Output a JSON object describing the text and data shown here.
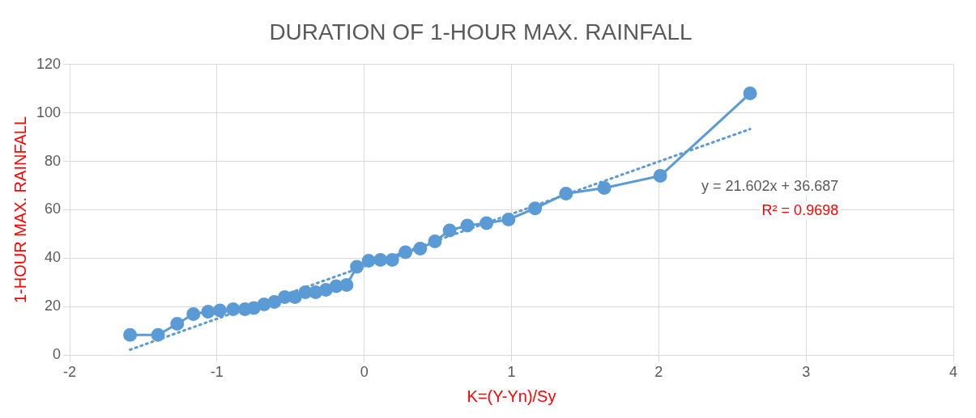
{
  "chart_data": {
    "type": "line",
    "title": "DURATION OF 1-HOUR MAX. RAINFALL",
    "xlabel": "K=(Y-Yn)/Sy",
    "ylabel": "1-HOUR MAX. RAINFALL",
    "xlim": [
      -2,
      4
    ],
    "xticks": [
      -2,
      -1,
      0,
      1,
      2,
      3,
      4
    ],
    "ylim": [
      0,
      120
    ],
    "yticks": [
      0,
      20,
      40,
      60,
      80,
      100,
      120
    ],
    "grid": true,
    "legend": false,
    "marker": "circle",
    "line_style": "solid",
    "series": [
      {
        "color": "#5b9bd5",
        "x": [
          -1.59,
          -1.4,
          -1.27,
          -1.16,
          -1.06,
          -0.98,
          -0.89,
          -0.81,
          -0.75,
          -0.68,
          -0.61,
          -0.54,
          -0.47,
          -0.4,
          -0.33,
          -0.26,
          -0.19,
          -0.12,
          -0.05,
          0.03,
          0.11,
          0.19,
          0.28,
          0.38,
          0.48,
          0.58,
          0.7,
          0.83,
          0.98,
          1.16,
          1.37,
          1.63,
          2.01,
          2.62
        ],
        "values": [
          8.4,
          8.4,
          13,
          17,
          18,
          18.5,
          19,
          19,
          19.5,
          21,
          22,
          24,
          24,
          26,
          26,
          27,
          28.5,
          29,
          36.5,
          39,
          39.3,
          39.3,
          42.5,
          44,
          47,
          51.5,
          53.5,
          54.5,
          56,
          60.6,
          66.7,
          69,
          74,
          108
        ]
      },
      {
        "type": "line",
        "color": "#5b9bd5",
        "marker": "none",
        "line_style": "dotted",
        "x": [
          -1.59,
          2.62
        ],
        "values": [
          2.3,
          93.3
        ]
      }
    ],
    "annotations": [
      "y = 21.602x + 36.687",
      "R² = 0.9698"
    ]
  }
}
